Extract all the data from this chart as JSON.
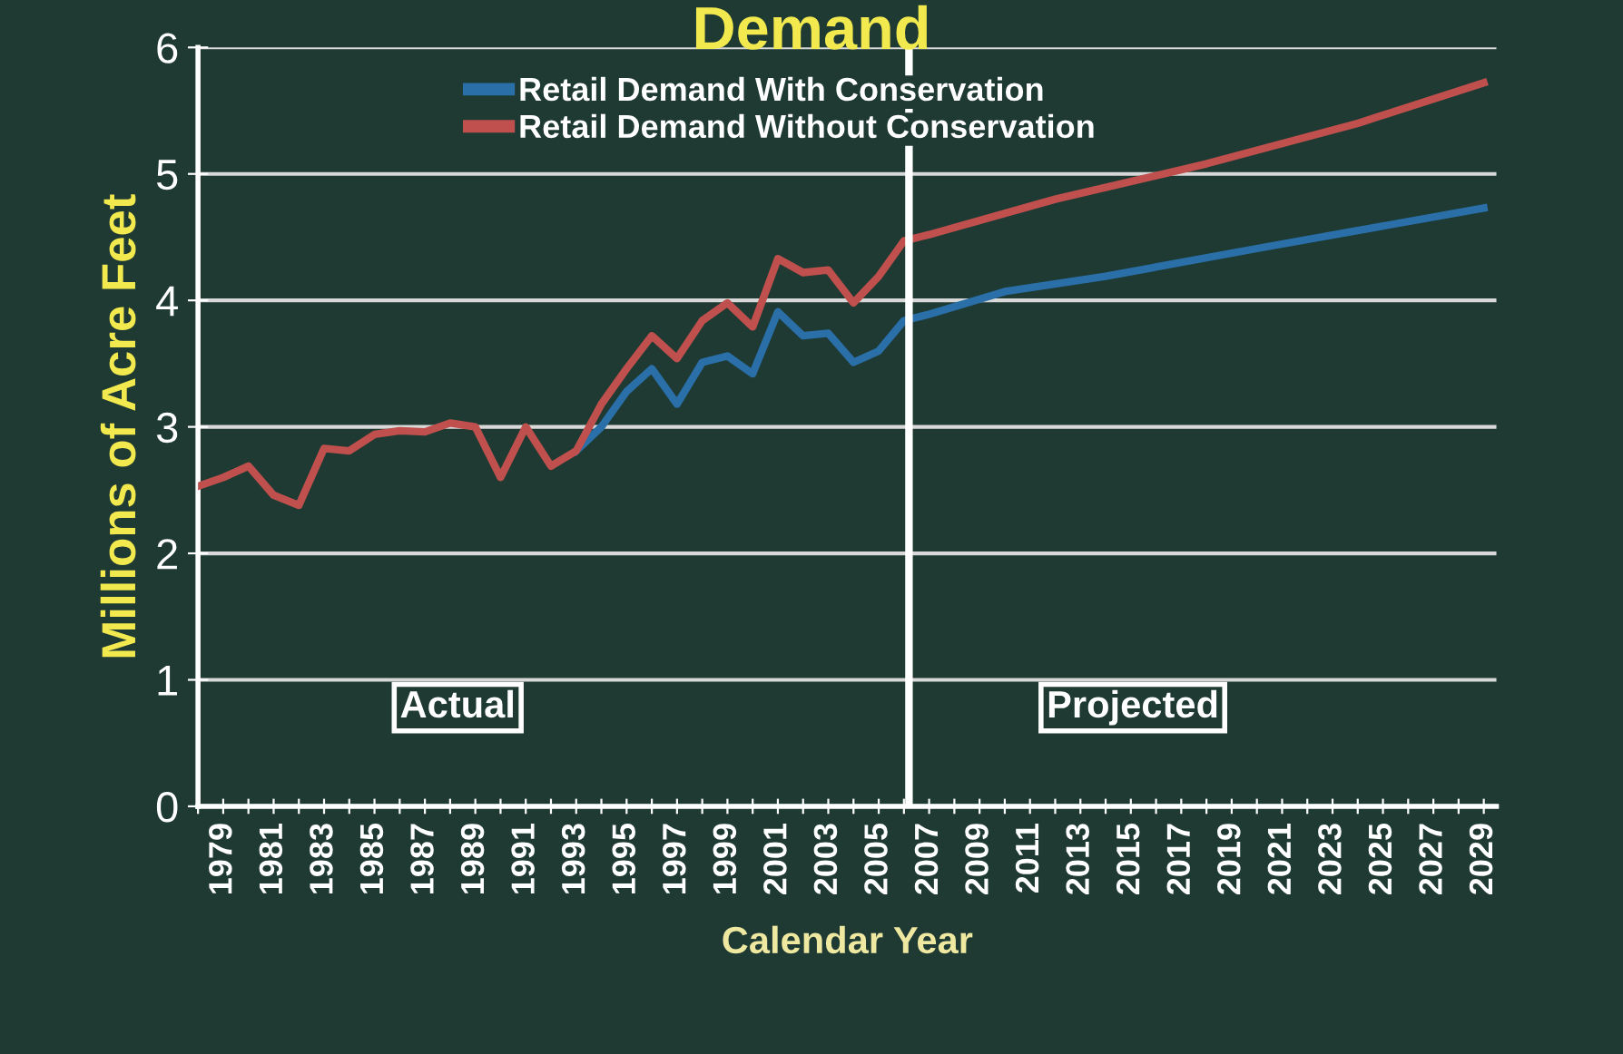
{
  "chart_data": {
    "type": "line",
    "title": "Demand",
    "xlabel": "Calendar Year",
    "ylabel": "Millions of Acre Feet",
    "series": [
      {
        "name": "Retail Demand With Conservation",
        "color": "#2a6fa8",
        "x": [
          1993,
          1994,
          1995,
          1996,
          1997,
          1998,
          1999,
          2000,
          2001,
          2002,
          2003,
          2004,
          2005,
          2006,
          2007,
          2010,
          2014,
          2020,
          2029
        ],
        "values": [
          2.81,
          3.0,
          3.28,
          3.46,
          3.18,
          3.51,
          3.56,
          3.42,
          3.91,
          3.72,
          3.74,
          3.51,
          3.6,
          3.84,
          3.89,
          4.07,
          4.19,
          4.41,
          4.73
        ]
      },
      {
        "name": "Retail Demand Without Conservation",
        "color": "#c0504d",
        "x": [
          1978,
          1979,
          1980,
          1981,
          1982,
          1983,
          1984,
          1985,
          1986,
          1987,
          1988,
          1989,
          1990,
          1991,
          1992,
          1993,
          1994,
          1995,
          1996,
          1997,
          1998,
          1999,
          2000,
          2001,
          2002,
          2003,
          2004,
          2005,
          2006,
          2007,
          2012,
          2018,
          2024,
          2029
        ],
        "values": [
          2.53,
          2.6,
          2.69,
          2.46,
          2.38,
          2.83,
          2.81,
          2.94,
          2.97,
          2.96,
          3.03,
          3.0,
          2.6,
          3.0,
          2.69,
          2.81,
          3.18,
          3.46,
          3.72,
          3.54,
          3.84,
          3.98,
          3.79,
          4.33,
          4.22,
          4.24,
          3.98,
          4.19,
          4.47,
          4.52,
          4.8,
          5.08,
          5.4,
          5.72
        ]
      }
    ],
    "xlim": [
      1978,
      2029.5
    ],
    "xticks": [
      {
        "value": 1978,
        "label": null
      },
      1979,
      {
        "value": 1980,
        "label": null
      },
      1981,
      {
        "value": 1982,
        "label": null
      },
      1983,
      {
        "value": 1984,
        "label": null
      },
      1985,
      {
        "value": 1986,
        "label": null
      },
      1987,
      {
        "value": 1988,
        "label": null
      },
      1989,
      {
        "value": 1990,
        "label": null
      },
      1991,
      {
        "value": 1992,
        "label": null
      },
      1993,
      {
        "value": 1994,
        "label": null
      },
      1995,
      {
        "value": 1996,
        "label": null
      },
      1997,
      {
        "value": 1998,
        "label": null
      },
      1999,
      {
        "value": 2000,
        "label": null
      },
      2001,
      {
        "value": 2002,
        "label": null
      },
      2003,
      {
        "value": 2004,
        "label": null
      },
      2005,
      {
        "value": 2006,
        "label": null
      },
      2007,
      {
        "value": 2008,
        "label": null
      },
      2009,
      {
        "value": 2010,
        "label": null
      },
      2011,
      {
        "value": 2012,
        "label": null
      },
      2013,
      {
        "value": 2014,
        "label": null
      },
      2015,
      {
        "value": 2016,
        "label": null
      },
      2017,
      {
        "value": 2018,
        "label": null
      },
      2019,
      {
        "value": 2020,
        "label": null
      },
      2021,
      {
        "value": 2022,
        "label": null
      },
      2023,
      {
        "value": 2024,
        "label": null
      },
      2025,
      {
        "value": 2026,
        "label": null
      },
      2027,
      {
        "value": 2028,
        "label": null
      },
      2029
    ],
    "ylim": [
      0,
      6
    ],
    "yticks": [
      0,
      1,
      2,
      3,
      4,
      5,
      6
    ],
    "grid": "y",
    "legend": "top",
    "marker": "none",
    "line_style": "solid",
    "ref_lines": [
      {
        "axis": "x",
        "value": 2006.2,
        "color": "#ffffff"
      }
    ],
    "annotations": [
      "Actual",
      "Projected"
    ]
  }
}
